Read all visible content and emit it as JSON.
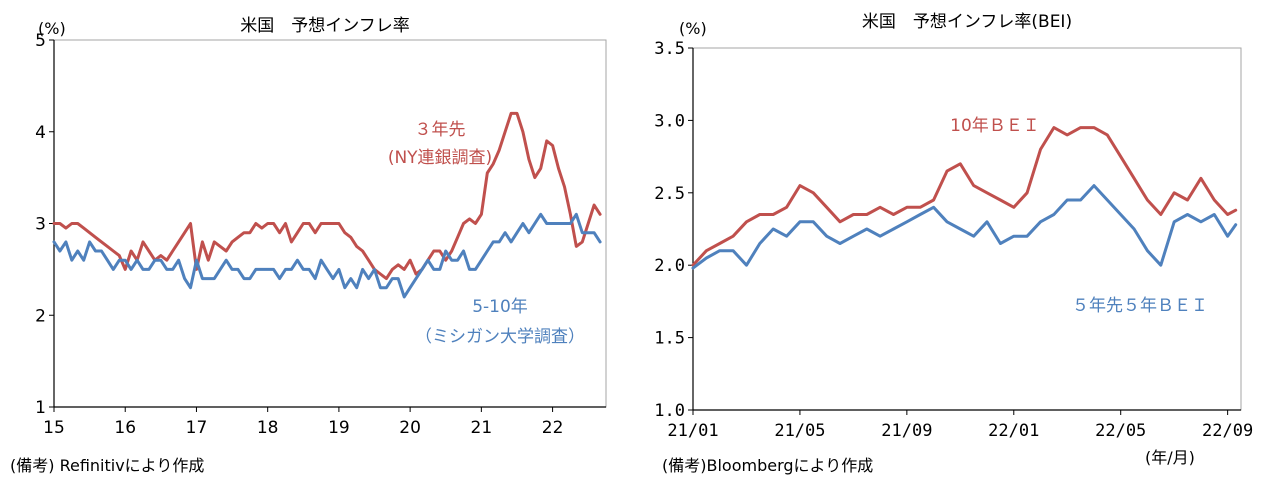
{
  "colors": {
    "red": "#C0504D",
    "blue": "#4F81BD",
    "axis": "#000000",
    "frame": "#a6a6a6"
  },
  "chart_data": [
    {
      "type": "line",
      "title": "米国　予想インフレ率",
      "ylabel": "(%)",
      "ylim": [
        1,
        5
      ],
      "yticks": [
        "1",
        "2",
        "3",
        "4",
        "5"
      ],
      "xlim": [
        15,
        22.75
      ],
      "xticks": [
        "15",
        "16",
        "17",
        "18",
        "19",
        "20",
        "21",
        "22"
      ],
      "source_note": "(備考) Refinitivにより作成",
      "grid": false,
      "series": [
        {
          "name": "3年先",
          "label_lines": [
            "３年先",
            "(NY連銀調査)"
          ],
          "color": "#C0504D",
          "x": [
            15.0,
            15.083,
            15.167,
            15.25,
            15.333,
            15.417,
            15.5,
            15.583,
            15.667,
            15.75,
            15.833,
            15.917,
            16.0,
            16.083,
            16.167,
            16.25,
            16.333,
            16.417,
            16.5,
            16.583,
            16.667,
            16.75,
            16.833,
            16.917,
            17.0,
            17.083,
            17.167,
            17.25,
            17.333,
            17.417,
            17.5,
            17.583,
            17.667,
            17.75,
            17.833,
            17.917,
            18.0,
            18.083,
            18.167,
            18.25,
            18.333,
            18.417,
            18.5,
            18.583,
            18.667,
            18.75,
            18.833,
            18.917,
            19.0,
            19.083,
            19.167,
            19.25,
            19.333,
            19.417,
            19.5,
            19.583,
            19.667,
            19.75,
            19.833,
            19.917,
            20.0,
            20.083,
            20.167,
            20.25,
            20.333,
            20.417,
            20.5,
            20.583,
            20.667,
            20.75,
            20.833,
            20.917,
            21.0,
            21.083,
            21.167,
            21.25,
            21.333,
            21.417,
            21.5,
            21.583,
            21.667,
            21.75,
            21.833,
            21.917,
            22.0,
            22.083,
            22.167,
            22.25,
            22.333,
            22.417,
            22.5,
            22.583,
            22.667
          ],
          "values": [
            3.0,
            3.0,
            2.95,
            3.0,
            3.0,
            2.95,
            2.9,
            2.85,
            2.8,
            2.75,
            2.7,
            2.65,
            2.5,
            2.7,
            2.6,
            2.8,
            2.7,
            2.6,
            2.65,
            2.6,
            2.7,
            2.8,
            2.9,
            3.0,
            2.5,
            2.8,
            2.6,
            2.8,
            2.75,
            2.7,
            2.8,
            2.85,
            2.9,
            2.9,
            3.0,
            2.95,
            3.0,
            3.0,
            2.9,
            3.0,
            2.8,
            2.9,
            3.0,
            3.0,
            2.9,
            3.0,
            3.0,
            3.0,
            3.0,
            2.9,
            2.85,
            2.75,
            2.7,
            2.6,
            2.5,
            2.45,
            2.4,
            2.5,
            2.55,
            2.5,
            2.6,
            2.45,
            2.5,
            2.6,
            2.7,
            2.7,
            2.6,
            2.7,
            2.85,
            3.0,
            3.05,
            3.0,
            3.1,
            3.55,
            3.65,
            3.8,
            4.0,
            4.2,
            4.2,
            4.0,
            3.7,
            3.5,
            3.6,
            3.9,
            3.85,
            3.6,
            3.4,
            3.1,
            2.75,
            2.8,
            3.0,
            3.2,
            3.1
          ]
        },
        {
          "name": "5-10年",
          "label_lines": [
            "5-10年",
            "（ミシガン大学調査）"
          ],
          "color": "#4F81BD",
          "x": [
            15.0,
            15.083,
            15.167,
            15.25,
            15.333,
            15.417,
            15.5,
            15.583,
            15.667,
            15.75,
            15.833,
            15.917,
            16.0,
            16.083,
            16.167,
            16.25,
            16.333,
            16.417,
            16.5,
            16.583,
            16.667,
            16.75,
            16.833,
            16.917,
            17.0,
            17.083,
            17.167,
            17.25,
            17.333,
            17.417,
            17.5,
            17.583,
            17.667,
            17.75,
            17.833,
            17.917,
            18.0,
            18.083,
            18.167,
            18.25,
            18.333,
            18.417,
            18.5,
            18.583,
            18.667,
            18.75,
            18.833,
            18.917,
            19.0,
            19.083,
            19.167,
            19.25,
            19.333,
            19.417,
            19.5,
            19.583,
            19.667,
            19.75,
            19.833,
            19.917,
            20.0,
            20.083,
            20.167,
            20.25,
            20.333,
            20.417,
            20.5,
            20.583,
            20.667,
            20.75,
            20.833,
            20.917,
            21.0,
            21.083,
            21.167,
            21.25,
            21.333,
            21.417,
            21.5,
            21.583,
            21.667,
            21.75,
            21.833,
            21.917,
            22.0,
            22.083,
            22.167,
            22.25,
            22.333,
            22.417,
            22.5,
            22.583,
            22.667
          ],
          "values": [
            2.8,
            2.7,
            2.8,
            2.6,
            2.7,
            2.6,
            2.8,
            2.7,
            2.7,
            2.6,
            2.5,
            2.6,
            2.6,
            2.5,
            2.6,
            2.5,
            2.5,
            2.6,
            2.6,
            2.5,
            2.5,
            2.6,
            2.4,
            2.3,
            2.6,
            2.4,
            2.4,
            2.4,
            2.5,
            2.6,
            2.5,
            2.5,
            2.4,
            2.4,
            2.5,
            2.5,
            2.5,
            2.5,
            2.4,
            2.5,
            2.5,
            2.6,
            2.5,
            2.5,
            2.4,
            2.6,
            2.5,
            2.4,
            2.5,
            2.3,
            2.4,
            2.3,
            2.5,
            2.4,
            2.5,
            2.3,
            2.3,
            2.4,
            2.4,
            2.2,
            2.3,
            2.4,
            2.5,
            2.6,
            2.5,
            2.5,
            2.7,
            2.6,
            2.6,
            2.7,
            2.5,
            2.5,
            2.6,
            2.7,
            2.8,
            2.8,
            2.9,
            2.8,
            2.9,
            3.0,
            2.9,
            3.0,
            3.1,
            3.0,
            3.0,
            3.0,
            3.0,
            3.0,
            3.1,
            2.9,
            2.9,
            2.9,
            2.8
          ]
        }
      ]
    },
    {
      "type": "line",
      "title": "米国　予想インフレ率(BEI)",
      "ylabel": "(%)",
      "ylim": [
        1.0,
        3.5
      ],
      "yticks": [
        "1.0",
        "1.5",
        "2.0",
        "2.5",
        "3.0",
        "3.5"
      ],
      "xlim": [
        0,
        20.5
      ],
      "xtick_positions": [
        0,
        4,
        8,
        12,
        16,
        20
      ],
      "xticks": [
        "21/01",
        "21/05",
        "21/09",
        "22/01",
        "22/05",
        "22/09"
      ],
      "x_unit_note": "(年/月)",
      "source_note": "(備考)Bloombergにより作成",
      "grid": false,
      "series": [
        {
          "name": "10年ＢＥＩ",
          "color": "#C0504D",
          "x": [
            0,
            0.5,
            1,
            1.5,
            2,
            2.5,
            3,
            3.5,
            4,
            4.5,
            5,
            5.5,
            6,
            6.5,
            7,
            7.5,
            8,
            8.5,
            9,
            9.5,
            10,
            10.5,
            11,
            11.5,
            12,
            12.5,
            13,
            13.5,
            14,
            14.5,
            15,
            15.5,
            16,
            16.5,
            17,
            17.5,
            18,
            18.5,
            19,
            19.5,
            20,
            20.3
          ],
          "values": [
            2.0,
            2.1,
            2.15,
            2.2,
            2.3,
            2.35,
            2.35,
            2.4,
            2.55,
            2.5,
            2.4,
            2.3,
            2.35,
            2.35,
            2.4,
            2.35,
            2.4,
            2.4,
            2.45,
            2.65,
            2.7,
            2.55,
            2.5,
            2.45,
            2.4,
            2.5,
            2.8,
            2.95,
            2.9,
            2.95,
            2.95,
            2.9,
            2.75,
            2.6,
            2.45,
            2.35,
            2.5,
            2.45,
            2.6,
            2.45,
            2.35,
            2.38
          ]
        },
        {
          "name": "５年先５年ＢＥＩ",
          "color": "#4F81BD",
          "x": [
            0,
            0.5,
            1,
            1.5,
            2,
            2.5,
            3,
            3.5,
            4,
            4.5,
            5,
            5.5,
            6,
            6.5,
            7,
            7.5,
            8,
            8.5,
            9,
            9.5,
            10,
            10.5,
            11,
            11.5,
            12,
            12.5,
            13,
            13.5,
            14,
            14.5,
            15,
            15.5,
            16,
            16.5,
            17,
            17.5,
            18,
            18.5,
            19,
            19.5,
            20,
            20.3
          ],
          "values": [
            1.98,
            2.05,
            2.1,
            2.1,
            2.0,
            2.15,
            2.25,
            2.2,
            2.3,
            2.3,
            2.2,
            2.15,
            2.2,
            2.25,
            2.2,
            2.25,
            2.3,
            2.35,
            2.4,
            2.3,
            2.25,
            2.2,
            2.3,
            2.15,
            2.2,
            2.2,
            2.3,
            2.35,
            2.45,
            2.45,
            2.55,
            2.45,
            2.35,
            2.25,
            2.1,
            2.0,
            2.3,
            2.35,
            2.3,
            2.35,
            2.2,
            2.28
          ]
        }
      ]
    }
  ]
}
